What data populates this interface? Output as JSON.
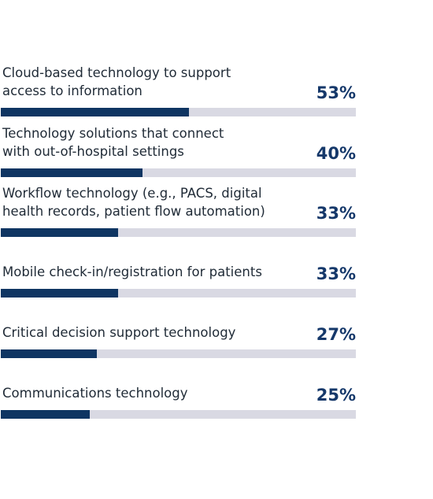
{
  "chart_data": {
    "type": "bar",
    "orientation": "horizontal",
    "categories": [
      "Cloud-based technology to support\naccess to information",
      "Technology solutions that connect\nwith out-of-hospital settings",
      "Workflow technology (e.g., PACS, digital\nhealth records, patient flow automation)",
      "Mobile check-in/registration for patients",
      "Critical decision support technology",
      "Communications technology"
    ],
    "values": [
      53,
      40,
      33,
      33,
      27,
      25
    ],
    "value_labels": [
      "53%",
      "40%",
      "33%",
      "33%",
      "27%",
      "25%"
    ],
    "xlim": [
      0,
      100
    ],
    "grid": false,
    "colors": {
      "bar_fill": "#0f3562",
      "bar_track": "#d9d9e3",
      "value_text": "#15386a",
      "label_text": "#1f2a36"
    }
  }
}
